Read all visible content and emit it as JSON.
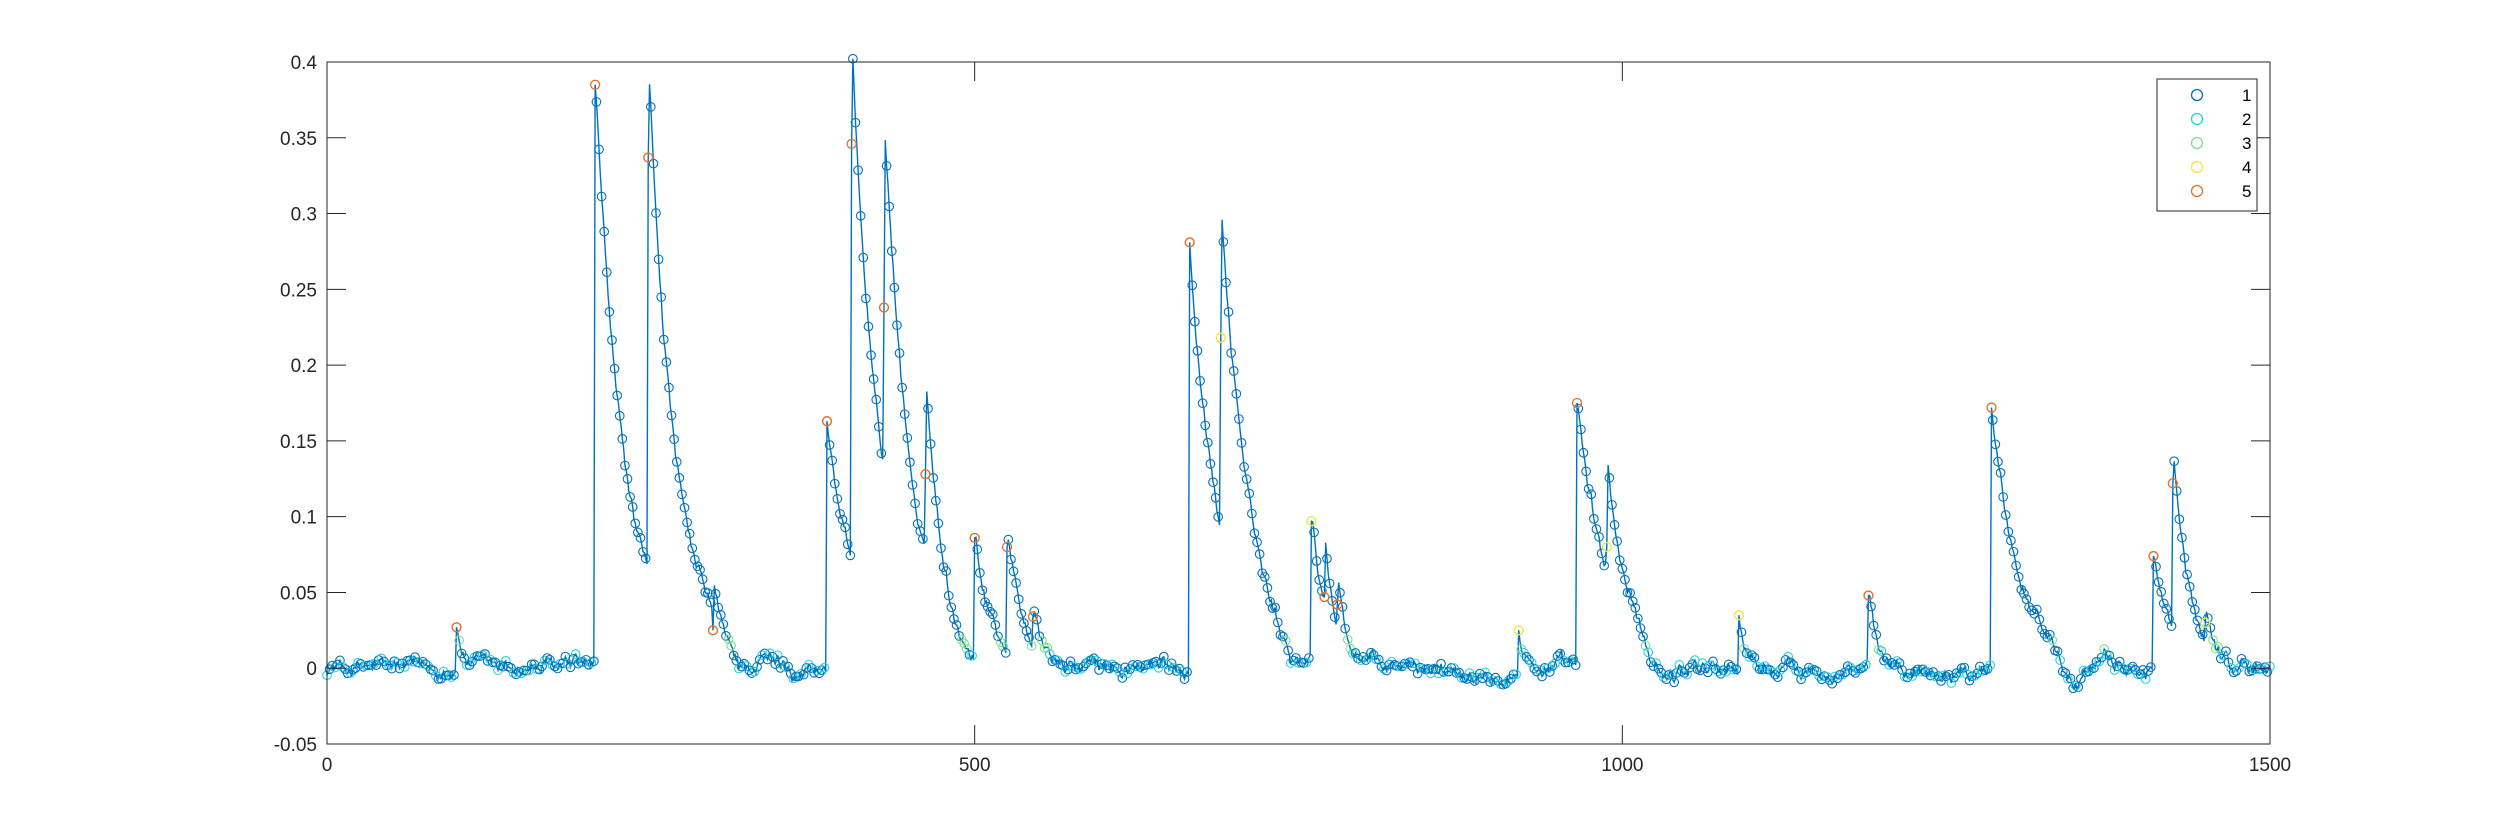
{
  "chart_data": {
    "type": "line",
    "title": "",
    "xlabel": "",
    "ylabel": "",
    "xlim": [
      0,
      1500
    ],
    "ylim": [
      -0.05,
      0.4
    ],
    "xticks": [
      0,
      500,
      1000,
      1500
    ],
    "xtick_labels": [
      "0",
      "500",
      "1000",
      "1500"
    ],
    "yticks": [
      -0.05,
      0,
      0.05,
      0.1,
      0.15,
      0.2,
      0.25,
      0.3,
      0.35,
      0.4
    ],
    "ytick_labels": [
      "-0.05",
      "0",
      "0.05",
      "0.1",
      "0.15",
      "0.2",
      "0.25",
      "0.3",
      "0.35",
      "0.4"
    ],
    "grid": false,
    "legend_position": "top-right",
    "line_color": "#0072bd",
    "marker": "circle (hollow), colored by cluster",
    "clusters": [
      {
        "label": "1",
        "color": "#0072bd"
      },
      {
        "label": "2",
        "color": "#22d3e6"
      },
      {
        "label": "3",
        "color": "#7ee08a"
      },
      {
        "label": "4",
        "color": "#f0e64a"
      },
      {
        "label": "5",
        "color": "#e8702a"
      }
    ],
    "baseline_noise_amplitude": 0.006,
    "peaks": [
      {
        "x": 100,
        "y": 0.027,
        "cluster": 5
      },
      {
        "x": 207,
        "y": 0.385,
        "cluster": 5
      },
      {
        "x": 248,
        "y": 0.337,
        "cluster": 5
      },
      {
        "x": 298,
        "y": 0.025,
        "cluster": 5
      },
      {
        "x": 386,
        "y": 0.163,
        "cluster": 5
      },
      {
        "x": 405,
        "y": 0.346,
        "cluster": 5
      },
      {
        "x": 430,
        "y": 0.238,
        "cluster": 5
      },
      {
        "x": 462,
        "y": 0.128,
        "cluster": 5
      },
      {
        "x": 500,
        "y": 0.086,
        "cluster": 5
      },
      {
        "x": 525,
        "y": 0.08,
        "cluster": 5
      },
      {
        "x": 545,
        "y": 0.034,
        "cluster": 5
      },
      {
        "x": 666,
        "y": 0.281,
        "cluster": 5
      },
      {
        "x": 690,
        "y": 0.218,
        "cluster": 4
      },
      {
        "x": 760,
        "y": 0.097,
        "cluster": 4
      },
      {
        "x": 770,
        "y": 0.047,
        "cluster": 5
      },
      {
        "x": 780,
        "y": 0.042,
        "cluster": 5
      },
      {
        "x": 920,
        "y": 0.025,
        "cluster": 4
      },
      {
        "x": 965,
        "y": 0.175,
        "cluster": 5
      },
      {
        "x": 988,
        "y": 0.08,
        "cluster": 4
      },
      {
        "x": 1090,
        "y": 0.035,
        "cluster": 4
      },
      {
        "x": 1190,
        "y": 0.048,
        "cluster": 5
      },
      {
        "x": 1285,
        "y": 0.172,
        "cluster": 5
      },
      {
        "x": 1410,
        "y": 0.074,
        "cluster": 5
      },
      {
        "x": 1425,
        "y": 0.122,
        "cluster": 5
      },
      {
        "x": 1450,
        "y": 0.03,
        "cluster": 4
      }
    ]
  }
}
